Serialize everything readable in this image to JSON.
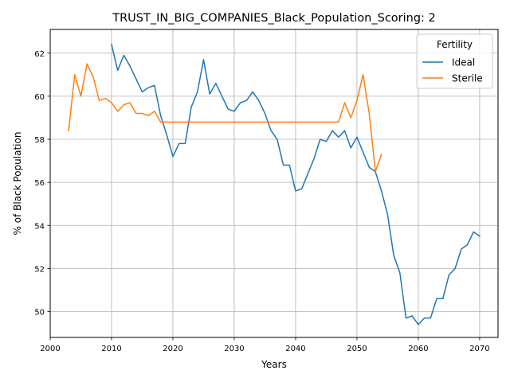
{
  "chart_data": {
    "type": "line",
    "title": "TRUST_IN_BIG_COMPANIES_Black_Population_Scoring: 2",
    "xlabel": "Years",
    "ylabel": "% of Black Population",
    "xlim": [
      2000,
      2073
    ],
    "ylim": [
      48.8,
      63.1
    ],
    "xticks": [
      2000,
      2010,
      2020,
      2030,
      2040,
      2050,
      2060,
      2070
    ],
    "yticks": [
      50,
      52,
      54,
      56,
      58,
      60,
      62
    ],
    "grid": true,
    "legend": {
      "title": "Fertility",
      "placement": "top-right"
    },
    "series": [
      {
        "name": "Ideal",
        "color": "#1f77b4",
        "x": [
          2010,
          2011,
          2012,
          2013,
          2014,
          2015,
          2016,
          2017,
          2018,
          2019,
          2020,
          2021,
          2022,
          2023,
          2024,
          2025,
          2026,
          2027,
          2028,
          2029,
          2030,
          2031,
          2032,
          2033,
          2034,
          2035,
          2036,
          2037,
          2038,
          2039,
          2040,
          2041,
          2042,
          2043,
          2044,
          2045,
          2046,
          2047,
          2048,
          2049,
          2050,
          2051,
          2052,
          2053,
          2054,
          2055,
          2056,
          2057,
          2058,
          2059,
          2060,
          2061,
          2062,
          2063,
          2064,
          2065,
          2066,
          2067,
          2068,
          2069,
          2070
        ],
        "values": [
          62.4,
          61.2,
          61.9,
          61.4,
          60.8,
          60.2,
          60.4,
          60.5,
          59.1,
          58.2,
          57.2,
          57.8,
          57.8,
          59.5,
          60.2,
          61.7,
          60.1,
          60.6,
          60.0,
          59.4,
          59.3,
          59.7,
          59.8,
          60.2,
          59.8,
          59.2,
          58.4,
          58.0,
          56.8,
          56.8,
          55.6,
          55.7,
          56.4,
          57.1,
          58.0,
          57.9,
          58.4,
          58.1,
          58.4,
          57.6,
          58.1,
          57.4,
          56.7,
          56.5,
          55.6,
          54.5,
          52.6,
          51.8,
          49.7,
          49.8,
          49.4,
          49.7,
          49.7,
          50.6,
          50.6,
          51.7,
          52.0,
          52.9,
          53.1,
          53.7,
          53.5
        ]
      },
      {
        "name": "Sterile",
        "color": "#ff7f0e",
        "x": [
          2003,
          2004,
          2005,
          2006,
          2007,
          2008,
          2009,
          2010,
          2011,
          2012,
          2013,
          2014,
          2015,
          2016,
          2017,
          2018,
          2019,
          2020,
          2021,
          2022,
          2023,
          2024,
          2025,
          2026,
          2027,
          2028,
          2029,
          2030,
          2031,
          2032,
          2033,
          2034,
          2035,
          2036,
          2037,
          2038,
          2039,
          2040,
          2041,
          2042,
          2043,
          2044,
          2045,
          2046,
          2047,
          2048,
          2049,
          2050,
          2051,
          2052,
          2053,
          2054
        ],
        "values": [
          58.4,
          61.0,
          60.0,
          61.5,
          60.9,
          59.8,
          59.9,
          59.7,
          59.3,
          59.6,
          59.7,
          59.2,
          59.2,
          59.1,
          59.3,
          58.8,
          58.8,
          58.8,
          58.8,
          58.8,
          58.8,
          58.8,
          58.8,
          58.8,
          58.8,
          58.8,
          58.8,
          58.8,
          58.8,
          58.8,
          58.8,
          58.8,
          58.8,
          58.8,
          58.8,
          58.8,
          58.8,
          58.8,
          58.8,
          58.8,
          58.8,
          58.8,
          58.8,
          58.8,
          58.8,
          59.7,
          59.0,
          59.8,
          61.0,
          59.2,
          56.5,
          57.3
        ]
      }
    ]
  }
}
